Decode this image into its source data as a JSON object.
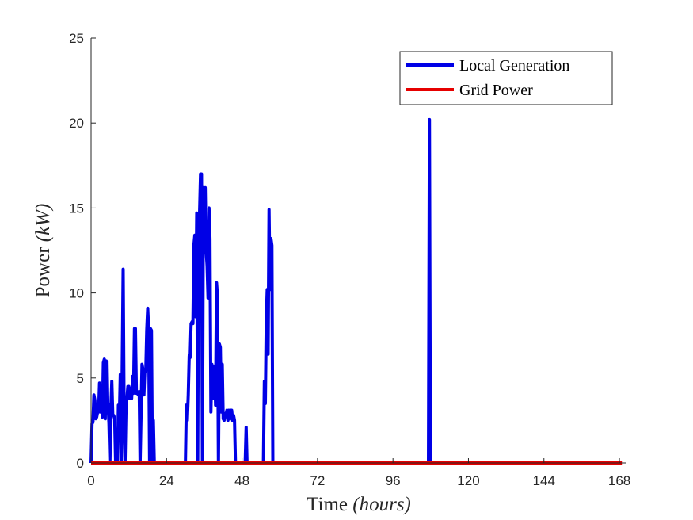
{
  "chart_data": {
    "type": "line",
    "xlabel": {
      "text": "Time ",
      "math": "(hours)"
    },
    "ylabel": {
      "text": "Power ",
      "math": "(kW)"
    },
    "xlim": [
      0,
      170
    ],
    "ylim": [
      0,
      25
    ],
    "xticks": [
      0,
      24,
      48,
      72,
      96,
      120,
      144,
      168
    ],
    "yticks": [
      0,
      5,
      10,
      15,
      20,
      25
    ],
    "grid": false,
    "legend_position": "top-right",
    "series": [
      {
        "name": "Local Generation",
        "color": "#0000e6",
        "points": [
          [
            0,
            0
          ],
          [
            0.3,
            2.3
          ],
          [
            0.6,
            2.4
          ],
          [
            0.9,
            4.0
          ],
          [
            1.2,
            3.7
          ],
          [
            1.5,
            2.6
          ],
          [
            1.8,
            2.7
          ],
          [
            2.1,
            3.0
          ],
          [
            2.4,
            3.0
          ],
          [
            2.7,
            4.7
          ],
          [
            3.0,
            3.0
          ],
          [
            3.3,
            3.7
          ],
          [
            3.6,
            2.7
          ],
          [
            3.9,
            5.9
          ],
          [
            4.2,
            6.1
          ],
          [
            4.5,
            2.6
          ],
          [
            4.8,
            6.0
          ],
          [
            5.1,
            3.0
          ],
          [
            5.4,
            3.5
          ],
          [
            5.7,
            2.3
          ],
          [
            6.0,
            0
          ],
          [
            6.3,
            3.2
          ],
          [
            6.6,
            4.8
          ],
          [
            6.9,
            2.8
          ],
          [
            7.2,
            2.8
          ],
          [
            7.5,
            2.6
          ],
          [
            7.8,
            0
          ],
          [
            8.4,
            0
          ],
          [
            8.7,
            3.4
          ],
          [
            9.0,
            2.6
          ],
          [
            9.3,
            5.2
          ],
          [
            9.6,
            0
          ],
          [
            9.9,
            5.5
          ],
          [
            10.2,
            11.4
          ],
          [
            10.5,
            2.7
          ],
          [
            10.8,
            0
          ],
          [
            11.1,
            3.2
          ],
          [
            11.4,
            3.8
          ],
          [
            11.7,
            4.5
          ],
          [
            12.0,
            4.5
          ],
          [
            12.3,
            3.8
          ],
          [
            12.6,
            4.4
          ],
          [
            12.9,
            3.8
          ],
          [
            13.2,
            5.1
          ],
          [
            13.5,
            4.1
          ],
          [
            13.8,
            7.9
          ],
          [
            14.1,
            7.9
          ],
          [
            14.4,
            4.1
          ],
          [
            14.7,
            4.2
          ],
          [
            15.0,
            4.0
          ],
          [
            15.3,
            4.2
          ],
          [
            15.6,
            0
          ],
          [
            16.2,
            5.8
          ],
          [
            16.5,
            5.5
          ],
          [
            16.8,
            4.0
          ],
          [
            17.1,
            5.5
          ],
          [
            17.4,
            5.4
          ],
          [
            17.7,
            7.8
          ],
          [
            18.0,
            9.1
          ],
          [
            18.3,
            7.8
          ],
          [
            18.6,
            0
          ],
          [
            18.9,
            7.9
          ],
          [
            19.2,
            7.8
          ],
          [
            19.5,
            0
          ],
          [
            19.8,
            2.5
          ],
          [
            20.1,
            0
          ],
          [
            30.0,
            0
          ],
          [
            30.3,
            3.4
          ],
          [
            30.6,
            2.5
          ],
          [
            30.9,
            4.0
          ],
          [
            31.2,
            6.3
          ],
          [
            31.5,
            6.2
          ],
          [
            31.8,
            8.2
          ],
          [
            32.1,
            8.3
          ],
          [
            32.4,
            8.2
          ],
          [
            32.7,
            12.8
          ],
          [
            33.0,
            13.4
          ],
          [
            33.3,
            8.6
          ],
          [
            33.6,
            14.7
          ],
          [
            33.9,
            0
          ],
          [
            34.2,
            13.9
          ],
          [
            34.5,
            14.7
          ],
          [
            34.8,
            17.0
          ],
          [
            35.1,
            17.0
          ],
          [
            35.4,
            0
          ],
          [
            35.7,
            16.2
          ],
          [
            36.0,
            15.1
          ],
          [
            36.3,
            16.2
          ],
          [
            36.6,
            12.5
          ],
          [
            36.9,
            11.6
          ],
          [
            37.2,
            9.7
          ],
          [
            37.5,
            15.0
          ],
          [
            37.8,
            13.2
          ],
          [
            38.1,
            3.0
          ],
          [
            38.4,
            5.8
          ],
          [
            38.7,
            5.5
          ],
          [
            39.0,
            3.8
          ],
          [
            39.3,
            5.7
          ],
          [
            39.6,
            3.4
          ],
          [
            39.9,
            10.6
          ],
          [
            40.2,
            9.8
          ],
          [
            40.5,
            0
          ],
          [
            40.8,
            7.0
          ],
          [
            41.1,
            6.8
          ],
          [
            41.4,
            3.0
          ],
          [
            41.7,
            5.8
          ],
          [
            42.0,
            2.6
          ],
          [
            42.3,
            2.5
          ],
          [
            42.6,
            2.9
          ],
          [
            42.9,
            2.8
          ],
          [
            43.2,
            3.1
          ],
          [
            43.5,
            2.5
          ],
          [
            43.8,
            3.1
          ],
          [
            44.1,
            2.6
          ],
          [
            44.4,
            3.1
          ],
          [
            44.7,
            3.1
          ],
          [
            45.0,
            2.5
          ],
          [
            45.3,
            2.8
          ],
          [
            45.6,
            2.5
          ],
          [
            45.9,
            0
          ],
          [
            49.0,
            0
          ],
          [
            49.3,
            2.1
          ],
          [
            49.6,
            0
          ],
          [
            54.8,
            0
          ],
          [
            55.1,
            4.8
          ],
          [
            55.4,
            3.5
          ],
          [
            55.7,
            8.4
          ],
          [
            56.0,
            10.2
          ],
          [
            56.3,
            6.4
          ],
          [
            56.6,
            14.9
          ],
          [
            56.9,
            10.2
          ],
          [
            57.2,
            13.2
          ],
          [
            57.5,
            12.8
          ],
          [
            57.8,
            0
          ],
          [
            107.3,
            0
          ],
          [
            107.6,
            20.2
          ],
          [
            107.9,
            0
          ],
          [
            168.5,
            0
          ]
        ]
      },
      {
        "name": "Grid Power",
        "color": "#e60000",
        "points": [
          [
            0,
            0
          ],
          [
            168.8,
            0
          ]
        ]
      }
    ]
  }
}
